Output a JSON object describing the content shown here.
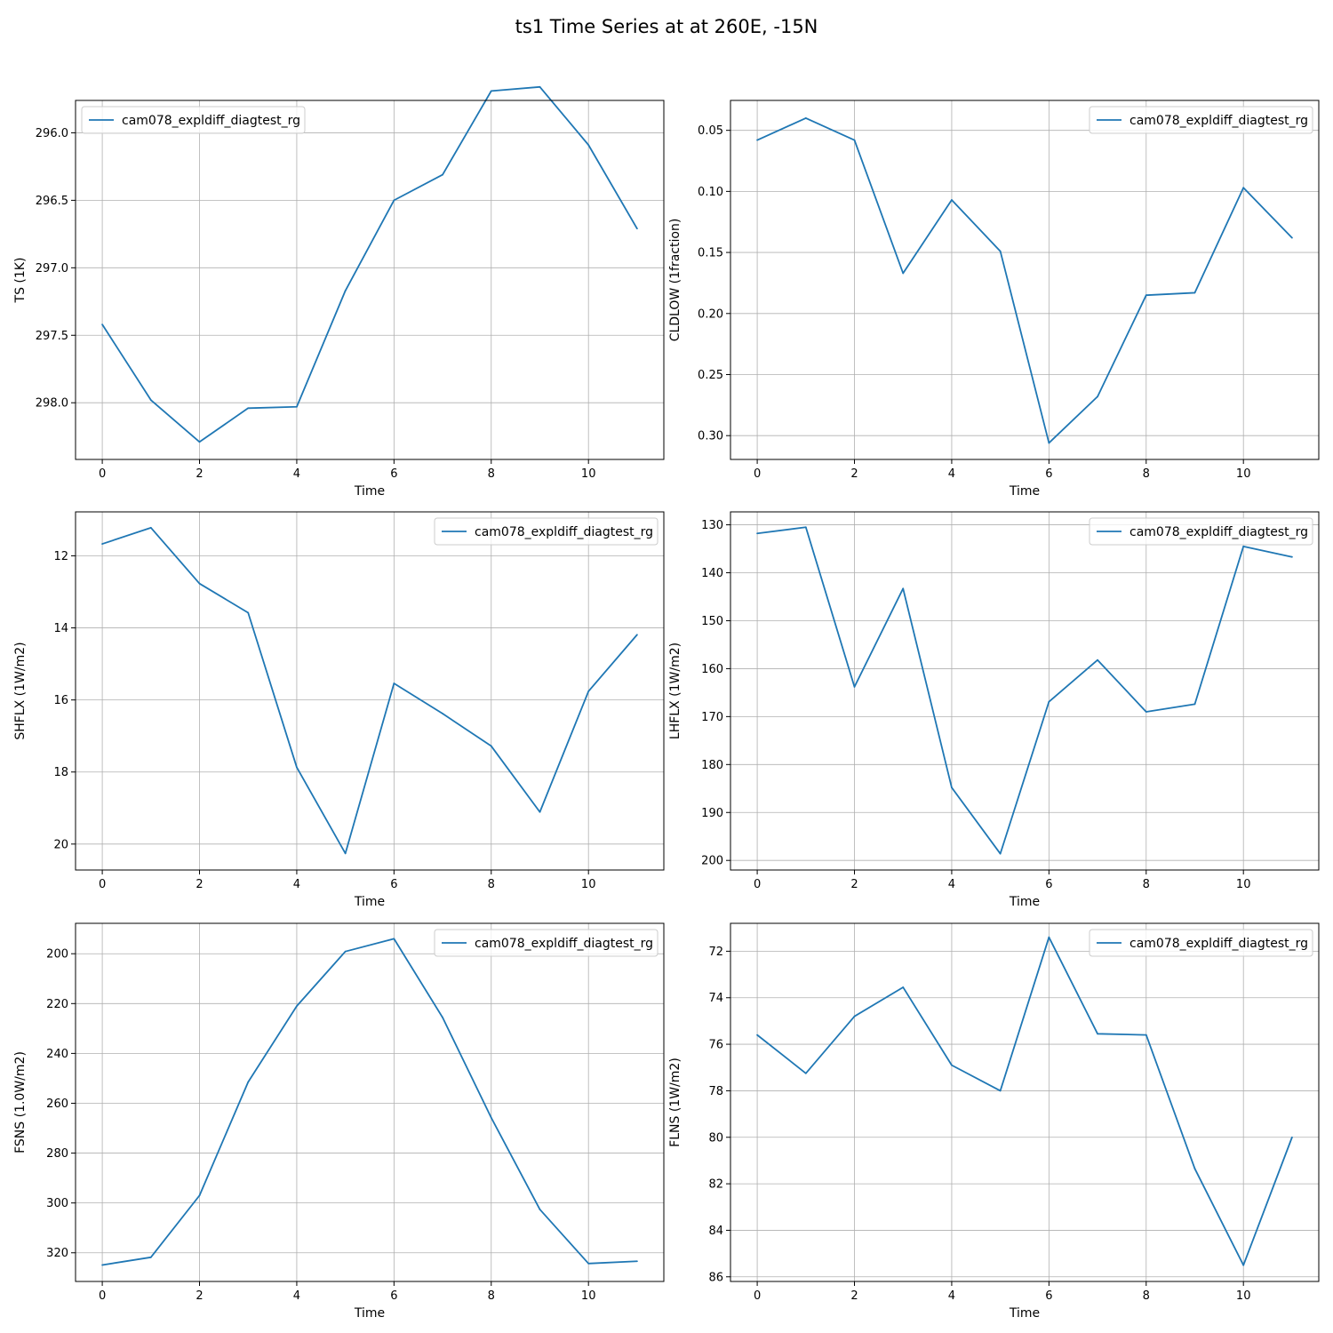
{
  "figure_title": "ts1 Time Series at at 260E, -15N",
  "colors": {
    "line": "#1f77b4",
    "grid": "#b0b0b0",
    "frame": "#000000",
    "legend_border": "#cccccc",
    "background": "#ffffff"
  },
  "chart_data": [
    {
      "type": "line",
      "xlabel": "Time",
      "ylabel": "TS (1K)",
      "y_inverted": true,
      "xlim": [
        -0.55,
        11.55
      ],
      "ylim": [
        298.42,
        295.76
      ],
      "x_ticks": [
        0,
        2,
        4,
        6,
        8,
        10
      ],
      "y_ticks": [
        296.0,
        296.5,
        297.0,
        297.5,
        298.0
      ],
      "y_tick_labels": [
        "296.0",
        "296.5",
        "297.0",
        "297.5",
        "298.0"
      ],
      "grid": true,
      "legend_position": "upper left",
      "x": [
        0,
        1,
        2,
        3,
        4,
        5,
        6,
        7,
        8,
        9,
        10,
        11
      ],
      "series": [
        {
          "name": "cam078_expldiff_diagtest_rg",
          "values": [
            297.42,
            297.98,
            298.29,
            298.04,
            298.03,
            297.17,
            296.5,
            296.31,
            295.69,
            295.66,
            296.09,
            296.71
          ]
        }
      ]
    },
    {
      "type": "line",
      "xlabel": "Time",
      "ylabel": "CLDLOW (1fraction)",
      "y_inverted": true,
      "xlim": [
        -0.55,
        11.55
      ],
      "ylim": [
        0.3195,
        0.0255
      ],
      "x_ticks": [
        0,
        2,
        4,
        6,
        8,
        10
      ],
      "y_ticks": [
        0.05,
        0.1,
        0.15,
        0.2,
        0.25,
        0.3
      ],
      "y_tick_labels": [
        "0.05",
        "0.10",
        "0.15",
        "0.20",
        "0.25",
        "0.30"
      ],
      "grid": true,
      "legend_position": "upper right",
      "x": [
        0,
        1,
        2,
        3,
        4,
        5,
        6,
        7,
        8,
        9,
        10,
        11
      ],
      "series": [
        {
          "name": "cam078_expldiff_diagtest_rg",
          "values": [
            0.058,
            0.04,
            0.058,
            0.167,
            0.107,
            0.149,
            0.306,
            0.268,
            0.185,
            0.183,
            0.097,
            0.138
          ]
        }
      ]
    },
    {
      "type": "line",
      "xlabel": "Time",
      "ylabel": "SHFLX (1W/m2)",
      "y_inverted": true,
      "xlim": [
        -0.55,
        11.55
      ],
      "ylim": [
        20.72,
        10.78
      ],
      "x_ticks": [
        0,
        2,
        4,
        6,
        8,
        10
      ],
      "y_ticks": [
        12,
        14,
        16,
        18,
        20
      ],
      "y_tick_labels": [
        "12",
        "14",
        "16",
        "18",
        "20"
      ],
      "grid": true,
      "legend_position": "upper right",
      "x": [
        0,
        1,
        2,
        3,
        4,
        5,
        6,
        7,
        8,
        9,
        10,
        11
      ],
      "series": [
        {
          "name": "cam078_expldiff_diagtest_rg",
          "values": [
            11.67,
            11.22,
            12.77,
            13.58,
            17.87,
            20.26,
            15.54,
            16.38,
            17.28,
            19.11,
            15.76,
            14.19
          ]
        }
      ]
    },
    {
      "type": "line",
      "xlabel": "Time",
      "ylabel": "LHFLX (1W/m2)",
      "y_inverted": true,
      "xlim": [
        -0.55,
        11.55
      ],
      "ylim": [
        202,
        127.3
      ],
      "x_ticks": [
        0,
        2,
        4,
        6,
        8,
        10
      ],
      "y_ticks": [
        130,
        140,
        150,
        160,
        170,
        180,
        190,
        200
      ],
      "y_tick_labels": [
        "130",
        "140",
        "150",
        "160",
        "170",
        "180",
        "190",
        "200"
      ],
      "grid": true,
      "legend_position": "upper right",
      "x": [
        0,
        1,
        2,
        3,
        4,
        5,
        6,
        7,
        8,
        9,
        10,
        11
      ],
      "series": [
        {
          "name": "cam078_expldiff_diagtest_rg",
          "values": [
            131.8,
            130.5,
            163.8,
            143.3,
            184.8,
            198.6,
            166.9,
            158.2,
            169.0,
            167.4,
            134.5,
            136.7
          ]
        }
      ]
    },
    {
      "type": "line",
      "xlabel": "Time",
      "ylabel": "FSNS (1.0W/m2)",
      "y_inverted": true,
      "xlim": [
        -0.55,
        11.55
      ],
      "ylim": [
        331.5,
        187.8
      ],
      "x_ticks": [
        0,
        2,
        4,
        6,
        8,
        10
      ],
      "y_ticks": [
        200,
        220,
        240,
        260,
        280,
        300,
        320
      ],
      "y_tick_labels": [
        "200",
        "220",
        "240",
        "260",
        "280",
        "300",
        "320"
      ],
      "grid": true,
      "legend_position": "upper right",
      "x": [
        0,
        1,
        2,
        3,
        4,
        5,
        6,
        7,
        8,
        9,
        10,
        11
      ],
      "series": [
        {
          "name": "cam078_expldiff_diagtest_rg",
          "values": [
            324.9,
            321.8,
            297.0,
            251.5,
            221.0,
            199.1,
            194.0,
            225.6,
            265.8,
            302.6,
            324.3,
            323.4
          ]
        }
      ]
    },
    {
      "type": "line",
      "xlabel": "Time",
      "ylabel": "FLNS (1W/m2)",
      "y_inverted": true,
      "xlim": [
        -0.55,
        11.55
      ],
      "ylim": [
        86.2,
        70.8
      ],
      "x_ticks": [
        0,
        2,
        4,
        6,
        8,
        10
      ],
      "y_ticks": [
        72,
        74,
        76,
        78,
        80,
        82,
        84,
        86
      ],
      "y_tick_labels": [
        "72",
        "74",
        "76",
        "78",
        "80",
        "82",
        "84",
        "86"
      ],
      "grid": true,
      "legend_position": "upper right",
      "x": [
        0,
        1,
        2,
        3,
        4,
        5,
        6,
        7,
        8,
        9,
        10,
        11
      ],
      "series": [
        {
          "name": "cam078_expldiff_diagtest_rg",
          "values": [
            75.6,
            77.25,
            74.8,
            73.55,
            76.9,
            78.0,
            71.4,
            75.55,
            75.6,
            81.35,
            85.5,
            80.0
          ]
        }
      ]
    }
  ]
}
